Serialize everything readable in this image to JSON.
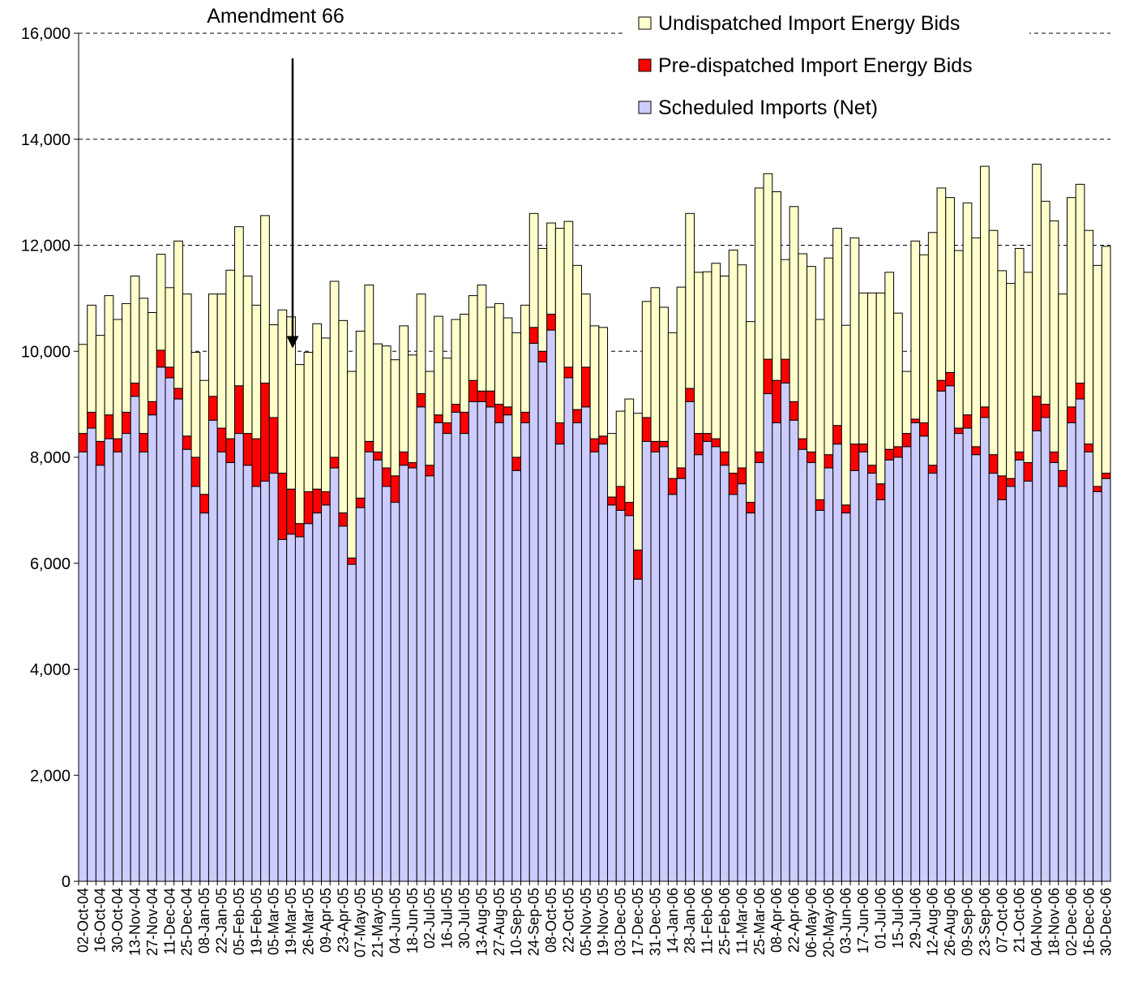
{
  "chart_data": {
    "type": "stacked_bar",
    "annotation": "Amendment 66",
    "categories": [
      "02-Oct-04",
      null,
      "16-Oct-04",
      null,
      "30-Oct-04",
      null,
      "13-Nov-04",
      null,
      "27-Nov-04",
      null,
      "11-Dec-04",
      null,
      "25-Dec-04",
      null,
      "08-Jan-05",
      null,
      "22-Jan-05",
      null,
      "05-Feb-05",
      null,
      "19-Feb-05",
      null,
      "05-Mar-05",
      null,
      "19-Mar-05",
      null,
      "26-Mar-05",
      null,
      "09-Apr-05",
      null,
      "23-Apr-05",
      null,
      "07-May-05",
      null,
      "21-May-05",
      null,
      "04-Jun-05",
      null,
      "18-Jun-05",
      null,
      "02-Jul-05",
      null,
      "16-Jul-05",
      null,
      "30-Jul-05",
      null,
      "13-Aug-05",
      null,
      "27-Aug-05",
      null,
      "10-Sep-05",
      null,
      "24-Sep-05",
      null,
      "08-Oct-05",
      null,
      "22-Oct-05",
      null,
      "05-Nov-05",
      null,
      "19-Nov-05",
      null,
      "03-Dec-05",
      null,
      "17-Dec-05",
      null,
      "31-Dec-05",
      null,
      "14-Jan-06",
      null,
      "28-Jan-06",
      null,
      "11-Feb-06",
      null,
      "25-Feb-06",
      null,
      "11-Mar-06",
      null,
      "25-Mar-06",
      null,
      "08-Apr-06",
      null,
      "22-Apr-06",
      null,
      "06-May-06",
      null,
      "20-May-06",
      null,
      "03-Jun-06",
      null,
      "17-Jun-06",
      null,
      "01-Jul-06",
      null,
      "15-Jul-06",
      null,
      "29-Jul-06",
      null,
      "12-Aug-06",
      null,
      "26-Aug-06",
      null,
      "09-Sep-06",
      null,
      "23-Sep-06",
      null,
      "07-Oct-06",
      null,
      "21-Oct-06",
      null,
      "04-Nov-06",
      null,
      "18-Nov-06",
      null,
      "02-Dec-06",
      null,
      "16-Dec-06",
      null,
      "30-Dec-06"
    ],
    "series": [
      {
        "name": "Scheduled Imports (Net)",
        "color": "#ccccff",
        "values": [
          8100,
          8550,
          7850,
          8350,
          8100,
          8450,
          9150,
          8100,
          8800,
          9700,
          9500,
          9100,
          8150,
          7450,
          6950,
          8700,
          8100,
          7900,
          8450,
          7850,
          7450,
          7550,
          7700,
          6450,
          6550,
          6500,
          6750,
          6950,
          7100,
          7800,
          6700,
          5980,
          7050,
          8100,
          7950,
          7450,
          7150,
          7850,
          7800,
          8950,
          7650,
          8650,
          8450,
          8850,
          8450,
          9050,
          9050,
          8950,
          8650,
          8800,
          7750,
          8650,
          10150,
          9800,
          10400,
          8250,
          9500,
          8650,
          8950,
          8100,
          8250,
          7100,
          7000,
          6900,
          5700,
          8300,
          8100,
          8200,
          7300,
          7600,
          9050,
          8050,
          8300,
          8200,
          7850,
          7300,
          7500,
          6950,
          7900,
          9200,
          8650,
          9400,
          8700,
          8150,
          7900,
          7000,
          7800,
          8250,
          6950,
          7750,
          8100,
          7700,
          7200,
          7950,
          8000,
          8200,
          8650,
          8400,
          7700,
          9250,
          9350,
          8450,
          8550,
          8050,
          8750,
          7700,
          7200,
          7450,
          7950,
          7550,
          8500,
          8750,
          7900,
          7450,
          8650,
          9100,
          8100,
          7350,
          7600
        ]
      },
      {
        "name": "Pre-dispatched Import Energy Bids",
        "color": "#ff0000",
        "values": [
          350,
          300,
          450,
          450,
          250,
          400,
          250,
          350,
          250,
          320,
          200,
          200,
          250,
          550,
          350,
          450,
          450,
          450,
          900,
          600,
          900,
          1850,
          1050,
          1250,
          850,
          250,
          600,
          450,
          250,
          200,
          250,
          120,
          180,
          200,
          150,
          350,
          500,
          250,
          100,
          250,
          200,
          150,
          200,
          150,
          400,
          400,
          200,
          300,
          350,
          150,
          250,
          200,
          300,
          200,
          300,
          400,
          200,
          250,
          750,
          250,
          150,
          150,
          450,
          250,
          550,
          450,
          200,
          100,
          300,
          200,
          250,
          400,
          150,
          150,
          250,
          400,
          300,
          200,
          200,
          650,
          800,
          450,
          350,
          200,
          200,
          200,
          250,
          350,
          150,
          500,
          150,
          150,
          300,
          200,
          200,
          250,
          70,
          250,
          150,
          200,
          250,
          100,
          250,
          150,
          200,
          350,
          450,
          150,
          150,
          350,
          650,
          250,
          200,
          300,
          300,
          300,
          150,
          100,
          100
        ]
      },
      {
        "name": "Undispatched Import Energy Bids",
        "color": "#ffffcc",
        "values": [
          1680,
          2020,
          2000,
          2250,
          2250,
          2050,
          2020,
          2550,
          1680,
          1810,
          1500,
          2780,
          2680,
          1980,
          2150,
          1930,
          2530,
          3180,
          3000,
          2970,
          2520,
          3160,
          1750,
          3080,
          3250,
          3000,
          2630,
          3120,
          2900,
          3320,
          3630,
          3520,
          3150,
          2950,
          2040,
          2300,
          2190,
          2380,
          2030,
          1880,
          1770,
          1860,
          1220,
          1600,
          1850,
          1600,
          2000,
          1580,
          1900,
          1680,
          2350,
          2020,
          2150,
          1940,
          1720,
          3670,
          2750,
          2720,
          1380,
          2130,
          2050,
          1200,
          1420,
          1950,
          2580,
          2190,
          2900,
          2530,
          2750,
          3410,
          3300,
          3040,
          3050,
          3310,
          3320,
          4210,
          3830,
          3410,
          4980,
          3500,
          3560,
          1880,
          3680,
          3490,
          3500,
          3400,
          3710,
          3720,
          3390,
          3890,
          2850,
          3250,
          3600,
          3340,
          2520,
          1170,
          3360,
          3170,
          4390,
          3630,
          3300,
          3350,
          4000,
          3940,
          4540,
          4230,
          3870,
          3680,
          3840,
          3590,
          4380,
          3830,
          4360,
          3330,
          3950,
          3750,
          4030,
          4170,
          4280
        ]
      }
    ],
    "ylim": [
      0,
      16000
    ],
    "yticks": [
      0,
      {
        "value": 2000,
        "label": "2,000"
      },
      {
        "value": 4000,
        "label": "4,000"
      },
      {
        "value": 6000,
        "label": "6,000"
      },
      {
        "value": 8000,
        "label": "8,000"
      },
      {
        "value": 10000,
        "label": "10,000"
      },
      {
        "value": 12000,
        "label": "12,000"
      },
      {
        "value": 14000,
        "label": "14,000"
      },
      {
        "value": 16000,
        "label": "16,000"
      }
    ],
    "grid": true,
    "legend": "top-right"
  }
}
